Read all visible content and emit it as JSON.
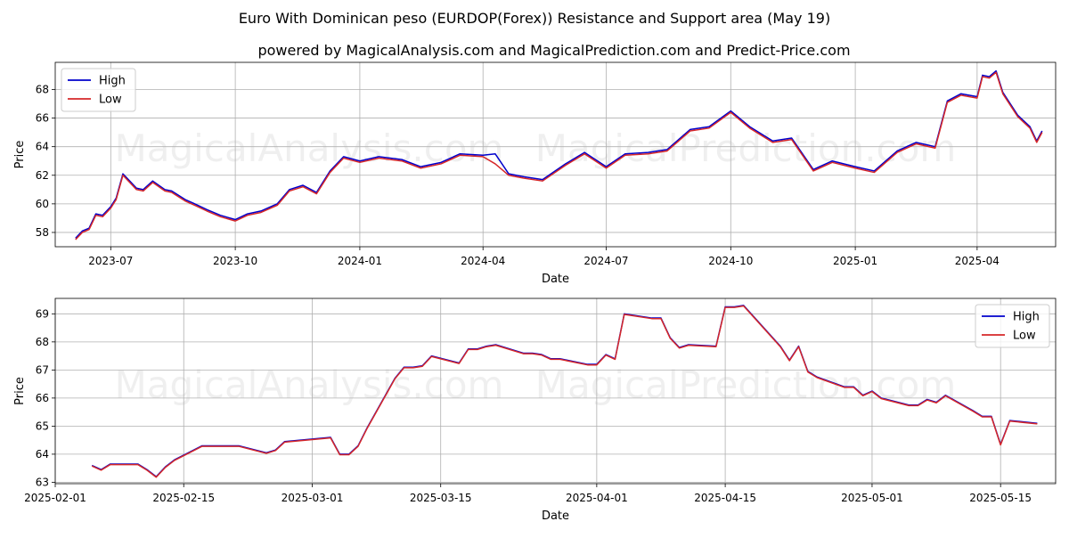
{
  "title": "Euro With Dominican peso (EURDOP(Forex)) Resistance and Support area (May 19)",
  "subtitle": "powered by MagicalAnalysis.com and MagicalPrediction.com and Predict-Price.com",
  "watermarks": [
    "MagicalAnalysis.com",
    "MagicalPrediction.com"
  ],
  "colors": {
    "high": "#0000cc",
    "low": "#d62728",
    "grid": "#b0b0b0"
  },
  "chart_data": [
    {
      "type": "line",
      "xlabel": "Date",
      "ylabel": "Price",
      "xlim": [
        "2023-05-21",
        "2025-05-29"
      ],
      "ylim": [
        57.0,
        69.9
      ],
      "grid": true,
      "legend": "top-left",
      "xticks": [
        "2023-07",
        "2023-10",
        "2024-01",
        "2024-04",
        "2024-07",
        "2024-10",
        "2025-01",
        "2025-04"
      ],
      "xtick_dates": [
        "2023-07-01",
        "2023-10-01",
        "2024-01-01",
        "2024-04-01",
        "2024-07-01",
        "2024-10-01",
        "2025-01-01",
        "2025-04-01"
      ],
      "yticks": [
        58,
        60,
        62,
        64,
        66,
        68
      ],
      "series": [
        {
          "name": "High",
          "x": [
            "2023-06-05",
            "2023-06-10",
            "2023-06-15",
            "2023-06-20",
            "2023-06-25",
            "2023-07-01",
            "2023-07-05",
            "2023-07-10",
            "2023-07-15",
            "2023-07-20",
            "2023-07-25",
            "2023-08-01",
            "2023-08-10",
            "2023-08-15",
            "2023-08-25",
            "2023-09-01",
            "2023-09-10",
            "2023-09-20",
            "2023-10-01",
            "2023-10-10",
            "2023-10-20",
            "2023-11-01",
            "2023-11-10",
            "2023-11-20",
            "2023-11-30",
            "2023-12-10",
            "2023-12-20",
            "2024-01-01",
            "2024-01-15",
            "2024-02-01",
            "2024-02-15",
            "2024-03-01",
            "2024-03-15",
            "2024-04-01",
            "2024-04-10",
            "2024-04-20",
            "2024-05-01",
            "2024-05-15",
            "2024-06-01",
            "2024-06-15",
            "2024-07-01",
            "2024-07-15",
            "2024-08-01",
            "2024-08-15",
            "2024-09-01",
            "2024-09-15",
            "2024-10-01",
            "2024-10-15",
            "2024-11-01",
            "2024-11-15",
            "2024-12-01",
            "2024-12-15",
            "2025-01-01",
            "2025-01-15",
            "2025-02-01",
            "2025-02-15",
            "2025-03-01",
            "2025-03-10",
            "2025-03-20",
            "2025-04-01",
            "2025-04-05",
            "2025-04-10",
            "2025-04-15",
            "2025-04-20",
            "2025-05-01",
            "2025-05-10",
            "2025-05-15",
            "2025-05-19"
          ],
          "y": [
            57.6,
            58.1,
            58.3,
            59.3,
            59.2,
            59.8,
            60.4,
            62.1,
            61.6,
            61.1,
            61.0,
            61.6,
            61.0,
            60.9,
            60.3,
            60.0,
            59.6,
            59.2,
            58.9,
            59.3,
            59.5,
            60.0,
            61.0,
            61.3,
            60.8,
            62.3,
            63.3,
            63.0,
            63.3,
            63.1,
            62.6,
            62.9,
            63.5,
            63.4,
            63.5,
            62.1,
            61.9,
            61.7,
            62.8,
            63.6,
            62.6,
            63.5,
            63.6,
            63.8,
            65.2,
            65.4,
            66.5,
            65.4,
            64.4,
            64.6,
            62.4,
            63.0,
            62.6,
            62.3,
            63.7,
            64.3,
            64.0,
            67.2,
            67.7,
            67.5,
            69.0,
            68.9,
            69.3,
            67.8,
            66.2,
            65.4,
            64.4,
            65.1
          ]
        },
        {
          "name": "Low",
          "x": [
            "2023-06-05",
            "2023-06-10",
            "2023-06-15",
            "2023-06-20",
            "2023-06-25",
            "2023-07-01",
            "2023-07-05",
            "2023-07-10",
            "2023-07-15",
            "2023-07-20",
            "2023-07-25",
            "2023-08-01",
            "2023-08-10",
            "2023-08-15",
            "2023-08-25",
            "2023-09-01",
            "2023-09-10",
            "2023-09-20",
            "2023-10-01",
            "2023-10-10",
            "2023-10-20",
            "2023-11-01",
            "2023-11-10",
            "2023-11-20",
            "2023-11-30",
            "2023-12-10",
            "2023-12-20",
            "2024-01-01",
            "2024-01-15",
            "2024-02-01",
            "2024-02-15",
            "2024-03-01",
            "2024-03-15",
            "2024-04-01",
            "2024-04-10",
            "2024-04-20",
            "2024-05-01",
            "2024-05-15",
            "2024-06-01",
            "2024-06-15",
            "2024-07-01",
            "2024-07-15",
            "2024-08-01",
            "2024-08-15",
            "2024-09-01",
            "2024-09-15",
            "2024-10-01",
            "2024-10-15",
            "2024-11-01",
            "2024-11-15",
            "2024-12-01",
            "2024-12-15",
            "2025-01-01",
            "2025-01-15",
            "2025-02-01",
            "2025-02-15",
            "2025-03-01",
            "2025-03-10",
            "2025-03-20",
            "2025-04-01",
            "2025-04-05",
            "2025-04-10",
            "2025-04-15",
            "2025-04-20",
            "2025-05-01",
            "2025-05-10",
            "2025-05-15",
            "2025-05-19"
          ],
          "y": [
            57.5,
            58.0,
            58.2,
            59.2,
            59.1,
            59.7,
            60.3,
            62.0,
            61.5,
            61.0,
            60.9,
            61.5,
            60.9,
            60.8,
            60.2,
            59.9,
            59.5,
            59.1,
            58.8,
            59.2,
            59.4,
            59.9,
            60.9,
            61.2,
            60.7,
            62.2,
            63.2,
            62.9,
            63.2,
            63.0,
            62.5,
            62.8,
            63.4,
            63.3,
            62.8,
            62.0,
            61.8,
            61.6,
            62.7,
            63.5,
            62.5,
            63.4,
            63.5,
            63.7,
            65.1,
            65.3,
            66.4,
            65.3,
            64.3,
            64.5,
            62.3,
            62.9,
            62.5,
            62.2,
            63.6,
            64.2,
            63.9,
            67.1,
            67.6,
            67.4,
            68.9,
            68.8,
            69.2,
            67.7,
            66.1,
            65.3,
            64.3,
            65.0
          ]
        }
      ]
    },
    {
      "type": "line",
      "xlabel": "Date",
      "ylabel": "Price",
      "xlim": [
        "2025-02-01",
        "2025-05-21"
      ],
      "ylim": [
        62.95,
        69.55
      ],
      "grid": true,
      "legend": "top-right",
      "xticks": [
        "2025-02-01",
        "2025-02-15",
        "2025-03-01",
        "2025-03-15",
        "2025-04-01",
        "2025-04-15",
        "2025-05-01",
        "2025-05-15"
      ],
      "yticks": [
        63,
        64,
        65,
        66,
        67,
        68,
        69
      ],
      "series": [
        {
          "name": "High",
          "x": [
            "2025-02-05",
            "2025-02-06",
            "2025-02-07",
            "2025-02-10",
            "2025-02-11",
            "2025-02-12",
            "2025-02-13",
            "2025-02-14",
            "2025-02-17",
            "2025-02-19",
            "2025-02-20",
            "2025-02-21",
            "2025-02-24",
            "2025-02-25",
            "2025-02-26",
            "2025-03-03",
            "2025-03-04",
            "2025-03-05",
            "2025-03-06",
            "2025-03-07",
            "2025-03-10",
            "2025-03-11",
            "2025-03-12",
            "2025-03-13",
            "2025-03-14",
            "2025-03-17",
            "2025-03-18",
            "2025-03-19",
            "2025-03-20",
            "2025-03-21",
            "2025-03-24",
            "2025-03-25",
            "2025-03-26",
            "2025-03-27",
            "2025-03-28",
            "2025-03-31",
            "2025-04-01",
            "2025-04-02",
            "2025-04-03",
            "2025-04-04",
            "2025-04-07",
            "2025-04-08",
            "2025-04-09",
            "2025-04-10",
            "2025-04-11",
            "2025-04-14",
            "2025-04-15",
            "2025-04-16",
            "2025-04-17",
            "2025-04-21",
            "2025-04-22",
            "2025-04-23",
            "2025-04-24",
            "2025-04-25",
            "2025-04-28",
            "2025-04-29",
            "2025-04-30",
            "2025-05-01",
            "2025-05-02",
            "2025-05-05",
            "2025-05-06",
            "2025-05-07",
            "2025-05-08",
            "2025-05-09",
            "2025-05-12",
            "2025-05-13",
            "2025-05-14",
            "2025-05-15",
            "2025-05-16",
            "2025-05-19"
          ],
          "y": [
            63.6,
            63.45,
            63.65,
            63.65,
            63.45,
            63.2,
            63.55,
            63.8,
            64.3,
            64.3,
            64.3,
            64.3,
            64.05,
            64.15,
            64.45,
            64.6,
            64.0,
            64.0,
            64.3,
            64.95,
            66.7,
            67.1,
            67.1,
            67.15,
            67.5,
            67.25,
            67.75,
            67.75,
            67.85,
            67.9,
            67.6,
            67.6,
            67.55,
            67.4,
            67.4,
            67.2,
            67.2,
            67.55,
            67.4,
            69.0,
            68.85,
            68.85,
            68.15,
            67.8,
            67.9,
            67.85,
            69.25,
            69.25,
            69.3,
            67.85,
            67.35,
            67.85,
            66.95,
            66.75,
            66.4,
            66.4,
            66.1,
            66.25,
            66.0,
            65.75,
            65.75,
            65.95,
            65.85,
            66.1,
            65.55,
            65.35,
            65.35,
            64.35,
            65.2,
            65.1
          ]
        },
        {
          "name": "Low",
          "x": [
            "2025-02-05",
            "2025-02-06",
            "2025-02-07",
            "2025-02-10",
            "2025-02-11",
            "2025-02-12",
            "2025-02-13",
            "2025-02-14",
            "2025-02-17",
            "2025-02-19",
            "2025-02-20",
            "2025-02-21",
            "2025-02-24",
            "2025-02-25",
            "2025-02-26",
            "2025-03-03",
            "2025-03-04",
            "2025-03-05",
            "2025-03-06",
            "2025-03-07",
            "2025-03-10",
            "2025-03-11",
            "2025-03-12",
            "2025-03-13",
            "2025-03-14",
            "2025-03-17",
            "2025-03-18",
            "2025-03-19",
            "2025-03-20",
            "2025-03-21",
            "2025-03-24",
            "2025-03-25",
            "2025-03-26",
            "2025-03-27",
            "2025-03-28",
            "2025-03-31",
            "2025-04-01",
            "2025-04-02",
            "2025-04-03",
            "2025-04-04",
            "2025-04-07",
            "2025-04-08",
            "2025-04-09",
            "2025-04-10",
            "2025-04-11",
            "2025-04-14",
            "2025-04-15",
            "2025-04-16",
            "2025-04-17",
            "2025-04-21",
            "2025-04-22",
            "2025-04-23",
            "2025-04-24",
            "2025-04-25",
            "2025-04-28",
            "2025-04-29",
            "2025-04-30",
            "2025-05-01",
            "2025-05-02",
            "2025-05-05",
            "2025-05-06",
            "2025-05-07",
            "2025-05-08",
            "2025-05-09",
            "2025-05-12",
            "2025-05-13",
            "2025-05-14",
            "2025-05-15",
            "2025-05-16",
            "2025-05-19"
          ],
          "y": [
            63.58,
            63.43,
            63.63,
            63.63,
            63.43,
            63.18,
            63.53,
            63.78,
            64.28,
            64.28,
            64.28,
            64.28,
            64.03,
            64.13,
            64.43,
            64.58,
            63.98,
            63.98,
            64.28,
            64.93,
            66.68,
            67.08,
            67.08,
            67.13,
            67.48,
            67.23,
            67.73,
            67.73,
            67.83,
            67.88,
            67.58,
            67.58,
            67.53,
            67.38,
            67.38,
            67.18,
            67.18,
            67.53,
            67.38,
            68.98,
            68.83,
            68.83,
            68.13,
            67.78,
            67.88,
            67.83,
            69.23,
            69.23,
            69.28,
            67.83,
            67.33,
            67.83,
            66.93,
            66.73,
            66.38,
            66.38,
            66.08,
            66.23,
            65.98,
            65.73,
            65.73,
            65.93,
            65.83,
            66.08,
            65.53,
            65.33,
            65.33,
            64.33,
            65.18,
            65.08
          ]
        }
      ]
    }
  ]
}
